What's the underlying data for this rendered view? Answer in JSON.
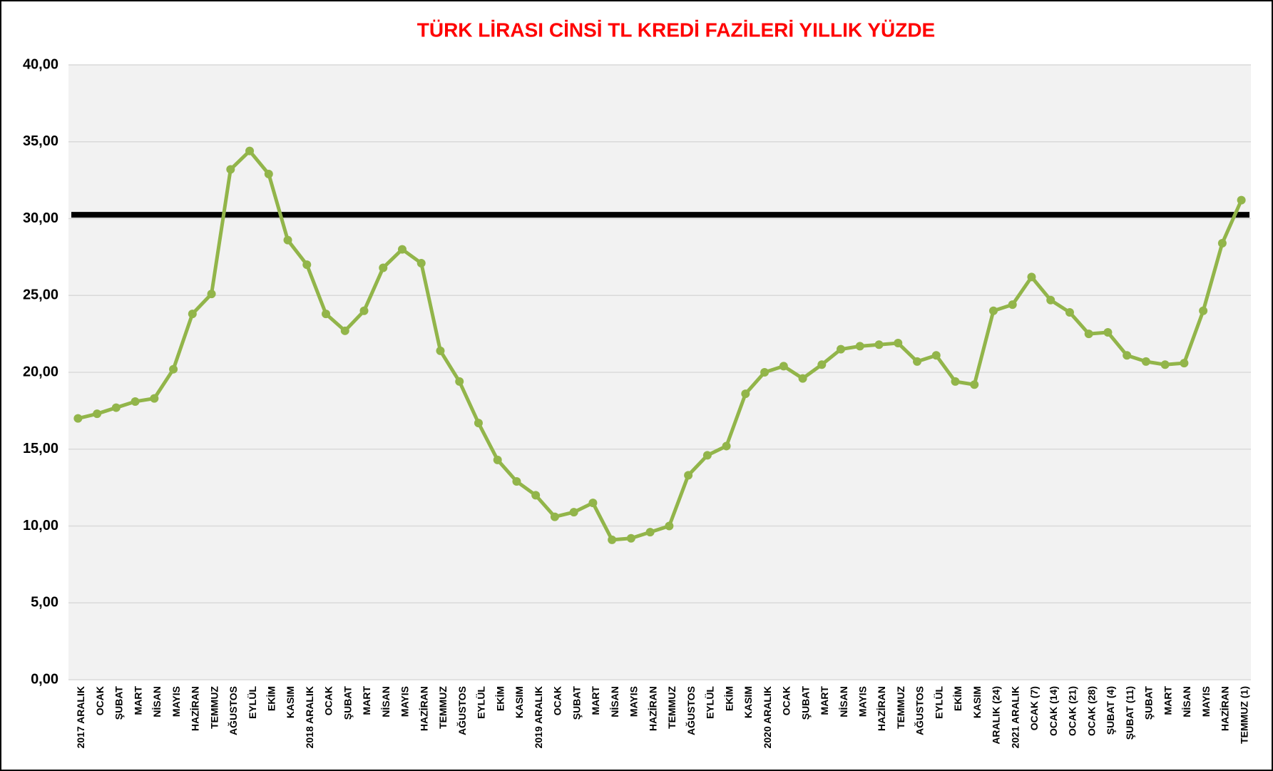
{
  "chart_data": {
    "type": "line",
    "title": "TÜRK LİRASI CİNSİ TL KREDİ FAZİLERİ YILLIK YÜZDE",
    "categories": [
      "2017 ARALIK",
      "OCAK",
      "ŞUBAT",
      "MART",
      "NİSAN",
      "MAYIS",
      "HAZİRAN",
      "TEMMUZ",
      "AĞUSTOS",
      "EYLÜL",
      "EKİM",
      "KASIM",
      "2018 ARALIK",
      "OCAK",
      "ŞUBAT",
      "MART",
      "NİSAN",
      "MAYIS",
      "HAZİRAN",
      "TEMMUZ",
      "AĞUSTOS",
      "EYLÜL",
      "EKİM",
      "KASIM",
      "2019 ARALIK",
      "OCAK",
      "ŞUBAT",
      "MART",
      "NİSAN",
      "MAYIS",
      "HAZİRAN",
      "TEMMUZ",
      "AĞUSTOS",
      "EYLÜL",
      "EKİM",
      "KASIM",
      "2020 ARALIK",
      "OCAK",
      "ŞUBAT",
      "MART",
      "NİSAN",
      "MAYIS",
      "HAZİRAN",
      "TEMMUZ",
      "AĞUSTOS",
      "EYLÜL",
      "EKİM",
      "KASIM",
      "ARALIK (24)",
      "2021 ARALIK",
      "OCAK (7)",
      "OCAK (14)",
      "OCAK (21)",
      "OCAK (28)",
      "ŞUBAT (4)",
      "ŞUBAT (11)",
      "ŞUBAT",
      "MART",
      "NİSAN",
      "MAYIS",
      "HAZİRAN",
      "TEMMUZ (1)"
    ],
    "series": [
      {
        "color": "#92b54a",
        "values": [
          17.0,
          17.3,
          17.7,
          18.1,
          18.3,
          20.2,
          23.8,
          25.1,
          33.2,
          34.4,
          32.9,
          28.6,
          27.0,
          23.8,
          22.7,
          24.0,
          26.8,
          28.0,
          27.1,
          21.4,
          19.4,
          16.7,
          14.3,
          12.9,
          12.0,
          10.6,
          10.9,
          11.5,
          9.1,
          9.2,
          9.6,
          10.0,
          13.3,
          14.6,
          15.2,
          18.6,
          20.0,
          20.4,
          19.6,
          20.5,
          21.5,
          21.7,
          21.8,
          21.9,
          20.7,
          21.1,
          19.4,
          19.2,
          24.0,
          24.4,
          26.2,
          24.7,
          23.9,
          22.5,
          22.6,
          21.1,
          20.7,
          20.5,
          20.6,
          24.0,
          28.4,
          31.2
        ]
      }
    ],
    "reference_line": {
      "value": 30.25,
      "color": "#000000"
    },
    "ylim": [
      0,
      40
    ],
    "yticks": [
      {
        "value": 0,
        "label": "0,00"
      },
      {
        "value": 5,
        "label": "5,00"
      },
      {
        "value": 10,
        "label": "10,00"
      },
      {
        "value": 15,
        "label": "15,00"
      },
      {
        "value": 20,
        "label": "20,00"
      },
      {
        "value": 25,
        "label": "25,00"
      },
      {
        "value": 30,
        "label": "30,00"
      },
      {
        "value": 35,
        "label": "35,00"
      },
      {
        "value": 40,
        "label": "40,00"
      }
    ],
    "grid": true
  }
}
